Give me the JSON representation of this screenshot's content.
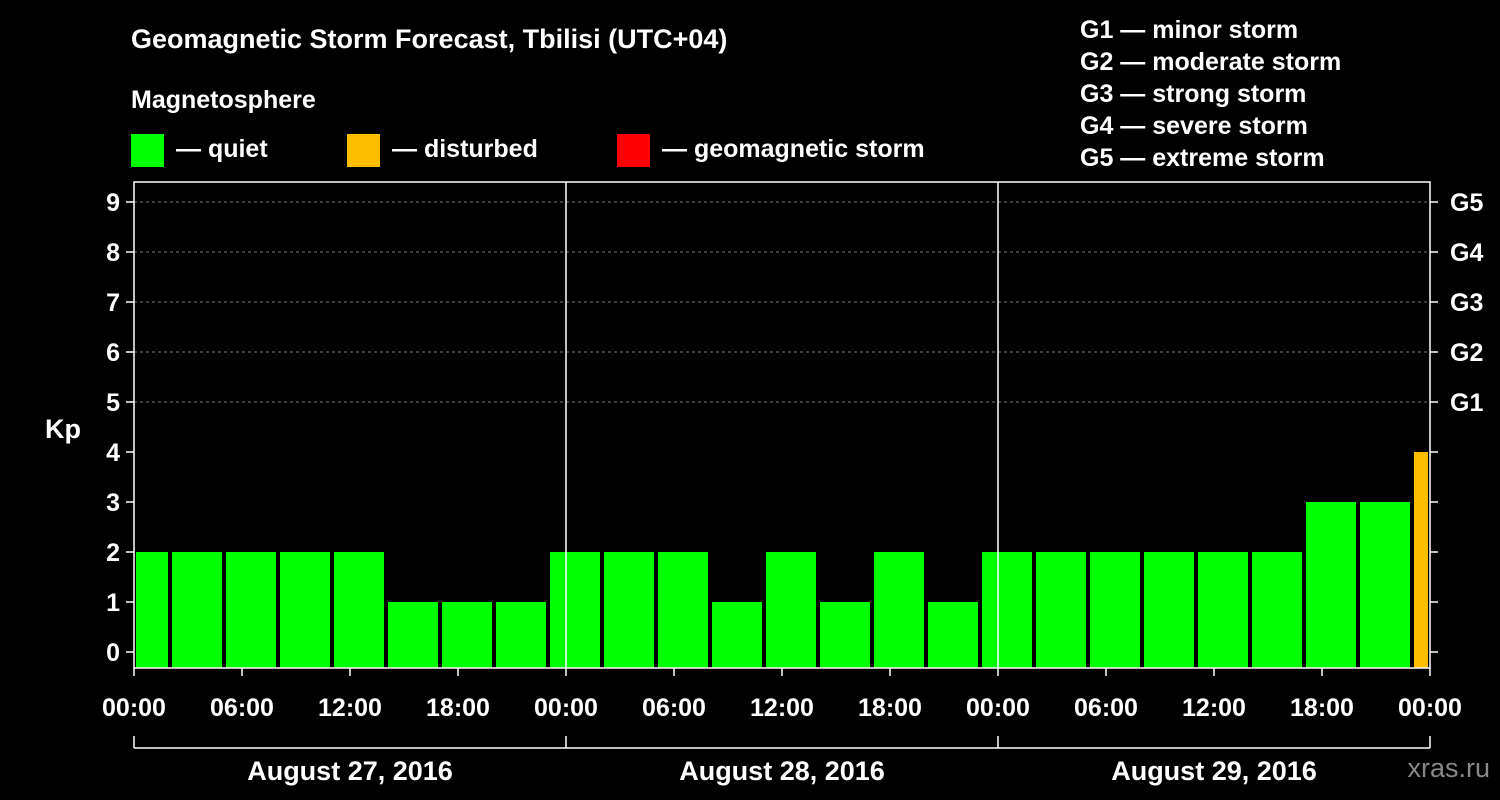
{
  "title": "Geomagnetic Storm Forecast, Tbilisi (UTC+04)",
  "magnetosphere_label": "Magnetosphere",
  "legend": [
    {
      "label": "— quiet",
      "color": "#00ff00"
    },
    {
      "label": "— disturbed",
      "color": "#ffbf00"
    },
    {
      "label": "— geomagnetic storm",
      "color": "#ff0000"
    }
  ],
  "storm_levels": [
    "G1 — minor storm",
    "G2 — moderate storm",
    "G3 — strong storm",
    "G4 — severe storm",
    "G5 — extreme storm"
  ],
  "watermark": "xras.ru",
  "chart_data": {
    "type": "bar",
    "ylabel": "Kp",
    "ylim": [
      0,
      9
    ],
    "yticks": [
      0,
      1,
      2,
      3,
      4,
      5,
      6,
      7,
      8,
      9
    ],
    "right_axis": [
      {
        "kp": 5,
        "label": "G1"
      },
      {
        "kp": 6,
        "label": "G2"
      },
      {
        "kp": 7,
        "label": "G3"
      },
      {
        "kp": 8,
        "label": "G4"
      },
      {
        "kp": 9,
        "label": "G5"
      }
    ],
    "x_tick_labels": [
      "00:00",
      "06:00",
      "12:00",
      "18:00",
      "00:00",
      "06:00",
      "12:00",
      "18:00",
      "00:00",
      "06:00",
      "12:00",
      "18:00",
      "00:00"
    ],
    "x_range_hours": [
      0,
      72
    ],
    "days": [
      "August 27, 2016",
      "August 28, 2016",
      "August 29, 2016"
    ],
    "first_bar_visible_from_hour": 0,
    "bars": [
      {
        "start_hour": -1,
        "kp": 2,
        "status": "quiet"
      },
      {
        "start_hour": 2,
        "kp": 2,
        "status": "quiet"
      },
      {
        "start_hour": 5,
        "kp": 2,
        "status": "quiet"
      },
      {
        "start_hour": 8,
        "kp": 2,
        "status": "quiet"
      },
      {
        "start_hour": 11,
        "kp": 2,
        "status": "quiet"
      },
      {
        "start_hour": 14,
        "kp": 1,
        "status": "quiet"
      },
      {
        "start_hour": 17,
        "kp": 1,
        "status": "quiet"
      },
      {
        "start_hour": 20,
        "kp": 1,
        "status": "quiet"
      },
      {
        "start_hour": 23,
        "kp": 2,
        "status": "quiet"
      },
      {
        "start_hour": 26,
        "kp": 2,
        "status": "quiet"
      },
      {
        "start_hour": 29,
        "kp": 2,
        "status": "quiet"
      },
      {
        "start_hour": 32,
        "kp": 1,
        "status": "quiet"
      },
      {
        "start_hour": 35,
        "kp": 2,
        "status": "quiet"
      },
      {
        "start_hour": 38,
        "kp": 1,
        "status": "quiet"
      },
      {
        "start_hour": 41,
        "kp": 2,
        "status": "quiet"
      },
      {
        "start_hour": 44,
        "kp": 1,
        "status": "quiet"
      },
      {
        "start_hour": 47,
        "kp": 2,
        "status": "quiet"
      },
      {
        "start_hour": 50,
        "kp": 2,
        "status": "quiet"
      },
      {
        "start_hour": 53,
        "kp": 2,
        "status": "quiet"
      },
      {
        "start_hour": 56,
        "kp": 2,
        "status": "quiet"
      },
      {
        "start_hour": 59,
        "kp": 2,
        "status": "quiet"
      },
      {
        "start_hour": 62,
        "kp": 2,
        "status": "quiet"
      },
      {
        "start_hour": 65,
        "kp": 3,
        "status": "quiet"
      },
      {
        "start_hour": 68,
        "kp": 3,
        "status": "quiet"
      },
      {
        "start_hour": 71,
        "kp": 4,
        "status": "disturbed"
      }
    ],
    "status_colors": {
      "quiet": "#00ff00",
      "disturbed": "#ffbf00",
      "storm": "#ff0000"
    }
  }
}
